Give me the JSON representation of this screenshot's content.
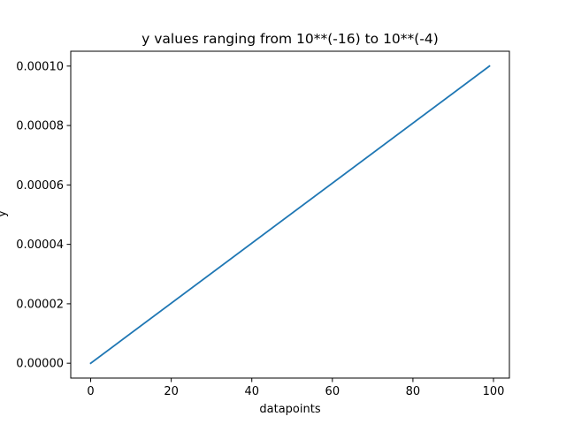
{
  "chart_data": {
    "type": "line",
    "title": "y values ranging from 10**(-16) to 10**(-4)",
    "xlabel": "datapoints",
    "ylabel": "y",
    "xlim": [
      -4.95,
      103.95
    ],
    "ylim": [
      -5e-06,
      0.000105
    ],
    "xticks": [
      0,
      20,
      40,
      60,
      80,
      100
    ],
    "xtick_labels": [
      "0",
      "20",
      "40",
      "60",
      "80",
      "100"
    ],
    "yticks": [
      0,
      2e-05,
      4e-05,
      6e-05,
      8e-05,
      0.0001
    ],
    "ytick_labels": [
      "0.00000",
      "0.00002",
      "0.00004",
      "0.00006",
      "0.00008",
      "0.00010"
    ],
    "grid": false,
    "series": [
      {
        "color": "#1f77b4",
        "x": [
          0,
          99
        ],
        "values": [
          1e-16,
          0.0001
        ]
      }
    ]
  }
}
